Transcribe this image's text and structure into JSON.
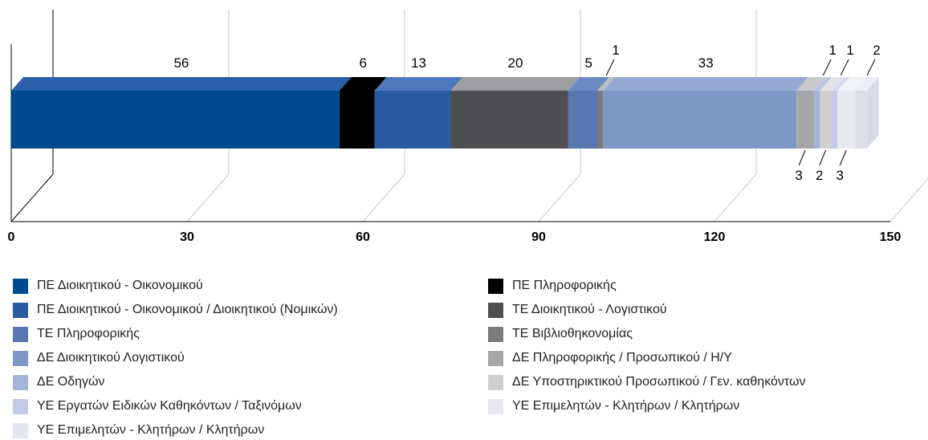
{
  "chart_data": {
    "type": "bar",
    "orientation": "horizontal",
    "stacked": true,
    "three_d": true,
    "xlim": [
      0,
      150
    ],
    "x_ticks": [
      "0",
      "30",
      "60",
      "90",
      "120",
      "150"
    ],
    "segments": [
      {
        "name": "ΠΕ Διοικητικού - Οικονομικού",
        "value": 56,
        "color": "#004a8f",
        "top_color": "#2a5ea8",
        "label": "56",
        "label_pos": "above"
      },
      {
        "name": "ΠΕ Πληροφορικής",
        "value": 6,
        "color": "#000000",
        "top_color": "#000000",
        "label": "6",
        "label_pos": "above"
      },
      {
        "name": "ΠΕ Διοικητικού - Οικονομικού / Διοικητικού (Νομικών)",
        "value": 13,
        "color": "#2a5aa0",
        "top_color": "#4e78bd",
        "label": "13",
        "label_pos": "above"
      },
      {
        "name": "ΤΕ Διοικητικού - Λογιστικού",
        "value": 20,
        "color": "#4f4f51",
        "top_color": "#9d9c9f",
        "label": "20",
        "label_pos": "above"
      },
      {
        "name": "ΤΕ Πληροφορικής",
        "value": 5,
        "color": "#5877b0",
        "top_color": "#6b8ac4",
        "label": "5",
        "label_pos": "above"
      },
      {
        "name": "ΤΕ Βιβλιοθηκονομίας",
        "value": 1,
        "color": "#7b7b7d",
        "top_color": "#bdbdbf",
        "label": "1",
        "label_pos": "above-leader"
      },
      {
        "name": "ΔΕ Διοικητικού Λογιστικού",
        "value": 33,
        "color": "#7f97c4",
        "top_color": "#95aad3",
        "label": "33",
        "label_pos": "above"
      },
      {
        "name": "ΔΕ Πληροφορικής / Προσωπικού / Η/Υ",
        "value": 3,
        "color": "#a6a6a8",
        "top_color": "#c9c9cb",
        "label": "3",
        "label_pos": "below-leader"
      },
      {
        "name": "ΔΕ Οδηγών",
        "value": 1,
        "color": "#a4b3d9",
        "top_color": "#bac6e4",
        "label": "1",
        "label_pos": "above-leader"
      },
      {
        "name": "ΔΕ Υποστηρικτικού Προσωπικού / Γεν. καθηκόντων",
        "value": 2,
        "color": "#cfcfd1",
        "top_color": "#e3e3e5",
        "label": "2",
        "label_pos": "below-leader"
      },
      {
        "name": "ΥΕ Εργατών Ειδικών Καθηκόντων / Ταξινόμων",
        "value": 1,
        "color": "#c3cae8",
        "top_color": "#d6dbef",
        "label": "1",
        "label_pos": "above-leader"
      },
      {
        "name": "ΥΕ Επιμελητών - Κλητήρων / Κλητήρων",
        "value": 3,
        "color": "#e8e9ee",
        "top_color": "#f2f3f6",
        "label": "3",
        "label_pos": "below-leader"
      },
      {
        "name": "ΥΕ Επιμελητών - Κλητήρων / Κλητήρων",
        "value": 2,
        "color": "#dcdfea",
        "top_color": "#eceef4",
        "label": "2",
        "label_pos": "above-leader"
      }
    ],
    "legend": {
      "placement": "bottom",
      "left_column": [
        {
          "label": "ΠΕ Διοικητικού - Οικονομικού",
          "color": "#004a8f"
        },
        {
          "label": "ΠΕ Διοικητικού - Οικονομικού / Διοικητικού (Νομικών)",
          "color": "#2a5aa0"
        },
        {
          "label": "ΤΕ Πληροφορικής",
          "color": "#5877b0"
        },
        {
          "label": "ΔΕ Διοικητικού Λογιστικού",
          "color": "#7f97c4"
        },
        {
          "label": "ΔΕ Οδηγών",
          "color": "#a4b3d9"
        },
        {
          "label": "ΥΕ Εργατών Ειδικών Καθηκόντων / Ταξινόμων",
          "color": "#c3cae8"
        },
        {
          "label": "ΥΕ Επιμελητών - Κλητήρων / Κλητήρων",
          "color": "#e3e5ef"
        }
      ],
      "right_column": [
        {
          "label": "ΠΕ Πληροφορικής",
          "color": "#000000"
        },
        {
          "label": "ΤΕ Διοικητικού - Λογιστικού",
          "color": "#4f4f51"
        },
        {
          "label": "ΤΕ Βιβλιοθηκονομίας",
          "color": "#7b7b7d"
        },
        {
          "label": "ΔΕ Πληροφορικής / Προσωπικού / Η/Υ",
          "color": "#a6a6a8"
        },
        {
          "label": "ΔΕ Υποστηρικτικού Προσωπικού / Γεν. καθηκόντων",
          "color": "#cfcfd1"
        },
        {
          "label": "ΥΕ Επιμελητών - Κλητήρων / Κλητήρων",
          "color": "#e8e9ee"
        }
      ]
    }
  }
}
